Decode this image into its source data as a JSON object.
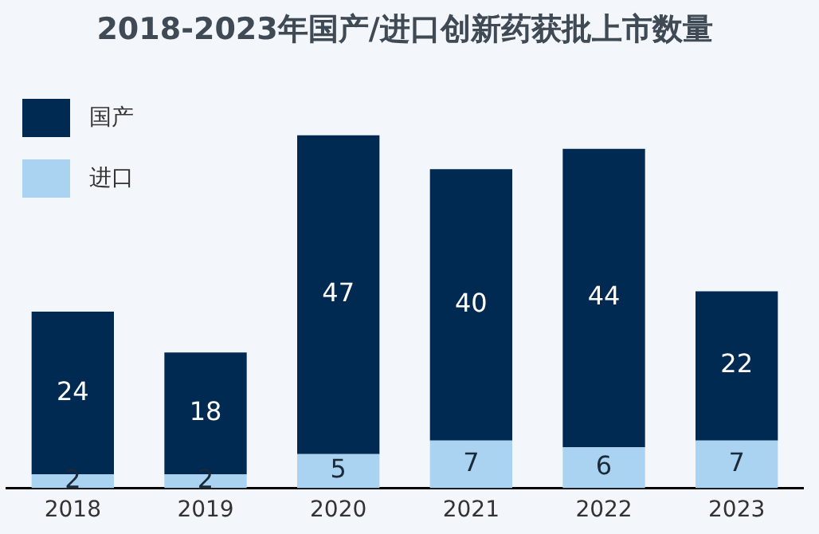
{
  "chart_data": {
    "type": "bar",
    "title": "2018-2023年国产/进口创新药获批上市数量",
    "categories": [
      "2018",
      "2019",
      "2020",
      "2021",
      "2022",
      "2023"
    ],
    "stacked": true,
    "data_labels": true,
    "legend": "top left",
    "grid": false,
    "series": [
      {
        "name": "进口",
        "color": "#a9d3f0",
        "values": [
          2,
          2,
          5,
          7,
          6,
          7
        ]
      },
      {
        "name": "国产",
        "color": "#002a52",
        "values": [
          24,
          18,
          47,
          40,
          44,
          22
        ]
      }
    ]
  }
}
